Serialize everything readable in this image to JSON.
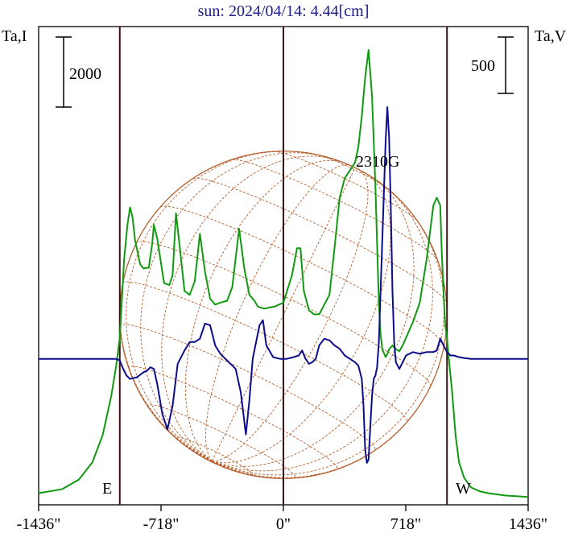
{
  "chart_data": {
    "type": "line",
    "title": "sun: 2024/04/14: 4.44[cm]",
    "left_axis_label": "Ta,I",
    "right_axis_label": "Ta,V",
    "x_tick_labels": [
      "-1436\"",
      "-718\"",
      "0\"",
      "718\"",
      "1436\""
    ],
    "x_ticks": [
      -1436,
      -718,
      0,
      718,
      1436
    ],
    "xlim": [
      -1436,
      1436
    ],
    "left_scale_bar_label": "2000",
    "right_scale_bar_label": "500",
    "east_label": "E",
    "west_label": "W",
    "annotation": {
      "text": "2310G",
      "x": 560
    },
    "limb_positions": [
      -960,
      0,
      960
    ],
    "ylim_I": [
      -3700,
      8600
    ],
    "ylim_V": [
      -870,
      1980
    ],
    "series": [
      {
        "name": "I",
        "color": "#119911",
        "x": [
          -1436,
          -1300,
          -1200,
          -1120,
          -1060,
          -1010,
          -980,
          -960,
          -935,
          -915,
          -900,
          -885,
          -870,
          -840,
          -820,
          -790,
          -770,
          -760,
          -740,
          -700,
          -670,
          -650,
          -630,
          -610,
          -580,
          -550,
          -520,
          -490,
          -460,
          -430,
          -400,
          -370,
          -330,
          -300,
          -260,
          -230,
          -200,
          -170,
          -150,
          -120,
          -100,
          -80,
          -50,
          0,
          50,
          80,
          100,
          120,
          150,
          180,
          210,
          240,
          270,
          300,
          330,
          360,
          390,
          420,
          440,
          460,
          480,
          500,
          520,
          540,
          550,
          560,
          570,
          580,
          590,
          600,
          610,
          620,
          640,
          660,
          680,
          700,
          720,
          760,
          800,
          840,
          880,
          900,
          920,
          930,
          940,
          950,
          960,
          970,
          990,
          1010,
          1030,
          1060,
          1100,
          1150,
          1200,
          1300,
          1436
        ],
        "y": [
          -3400,
          -3300,
          -3050,
          -2600,
          -1900,
          -900,
          -100,
          600,
          2600,
          3500,
          3950,
          3700,
          3100,
          2480,
          2380,
          2400,
          3000,
          3500,
          3150,
          2000,
          1950,
          2200,
          3800,
          3000,
          1800,
          1700,
          2050,
          3270,
          2300,
          1600,
          1450,
          1500,
          1550,
          1900,
          3400,
          2400,
          1700,
          1550,
          1400,
          1350,
          1350,
          1380,
          1400,
          1500,
          2200,
          2900,
          2900,
          1800,
          1300,
          1200,
          1200,
          1450,
          1700,
          2900,
          4200,
          4700,
          4900,
          5100,
          5500,
          6300,
          7300,
          8000,
          6800,
          4500,
          3000,
          1500,
          700,
          300,
          200,
          100,
          180,
          300,
          400,
          300,
          250,
          400,
          600,
          1000,
          1500,
          2600,
          4000,
          4200,
          4000,
          2700,
          1700,
          900,
          600,
          100,
          -800,
          -1900,
          -2600,
          -3000,
          -3250,
          -3350,
          -3400,
          -3460,
          -3500
        ]
      },
      {
        "name": "V",
        "color": "#0d0d8c",
        "x": [
          -1436,
          -1010,
          -980,
          -960,
          -940,
          -920,
          -900,
          -860,
          -820,
          -800,
          -780,
          -760,
          -740,
          -710,
          -680,
          -650,
          -620,
          -580,
          -550,
          -520,
          -490,
          -460,
          -430,
          -400,
          -370,
          -340,
          -310,
          -280,
          -250,
          -220,
          -200,
          -180,
          -160,
          -140,
          -120,
          -100,
          -60,
          -20,
          0,
          20,
          60,
          90,
          110,
          130,
          150,
          170,
          190,
          210,
          240,
          270,
          300,
          330,
          360,
          390,
          420,
          440,
          460,
          470,
          480,
          490,
          500,
          510,
          520,
          530,
          540,
          550,
          560,
          570,
          580,
          590,
          600,
          610,
          620,
          630,
          640,
          650,
          660,
          680,
          700,
          720,
          760,
          800,
          840,
          880,
          900,
          920,
          940,
          960,
          980,
          1000,
          1030,
          1060,
          1100,
          1436
        ],
        "y": [
          0,
          0,
          0,
          -10,
          -60,
          -100,
          -120,
          -110,
          -80,
          -70,
          -50,
          -60,
          -150,
          -330,
          -420,
          -280,
          -30,
          50,
          100,
          100,
          120,
          210,
          200,
          80,
          30,
          0,
          -30,
          -60,
          -200,
          -450,
          -250,
          0,
          100,
          200,
          230,
          80,
          10,
          0,
          0,
          0,
          10,
          20,
          50,
          0,
          -30,
          -20,
          0,
          80,
          120,
          110,
          80,
          60,
          20,
          0,
          -20,
          -40,
          -120,
          -280,
          -540,
          -620,
          -600,
          -400,
          -220,
          -120,
          -100,
          -50,
          100,
          400,
          700,
          1000,
          1300,
          1500,
          1320,
          900,
          400,
          100,
          -20,
          -60,
          -20,
          20,
          40,
          30,
          40,
          40,
          50,
          120,
          80,
          40,
          20,
          20,
          10,
          5,
          0,
          0
        ]
      }
    ]
  }
}
